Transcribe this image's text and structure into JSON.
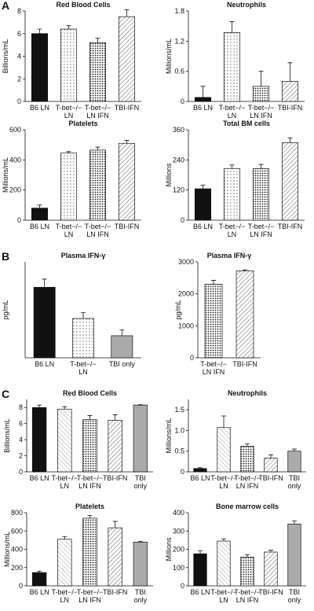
{
  "chart_data": [
    {
      "type": "bar",
      "panel": "A",
      "title": "Red Blood Cells",
      "ylabel": "Billions/mL",
      "categories": [
        "B6 LN",
        "T-bet−/−\nLN",
        "T-bet−/−\nLN IFN",
        "TBI-IFN"
      ],
      "values": [
        6.0,
        6.4,
        5.2,
        7.5
      ],
      "errors": [
        0.4,
        0.3,
        0.4,
        0.6
      ],
      "styles": [
        "black",
        "dots",
        "dense-dots",
        "hatch"
      ],
      "ylim": [
        0,
        8
      ],
      "yticks": [
        0,
        2,
        4,
        6,
        8
      ]
    },
    {
      "type": "bar",
      "title": "Neutrophils",
      "ylabel": "Millions/mL",
      "categories": [
        "B6 LN",
        "T-bet−/−\nLN",
        "T-bet−/−\nLN IFN",
        "TBI-IFN"
      ],
      "values": [
        0.08,
        1.37,
        0.3,
        0.4
      ],
      "errors": [
        0.22,
        0.22,
        0.3,
        0.37
      ],
      "styles": [
        "black",
        "dots",
        "dense-dots",
        "hatch"
      ],
      "ylim": [
        0,
        1.8
      ],
      "yticks": [
        0,
        0.6,
        1.2,
        1.8
      ]
    },
    {
      "type": "bar",
      "title": "Platelets",
      "ylabel": "Millions/mL",
      "categories": [
        "B6 LN",
        "T-bet−/−\nLN",
        "T-bet−/−\nLN IFN",
        "TBI-IFN"
      ],
      "values": [
        80,
        445,
        465,
        510
      ],
      "errors": [
        20,
        10,
        20,
        20
      ],
      "styles": [
        "black",
        "dots",
        "dense-dots",
        "hatch"
      ],
      "ylim": [
        0,
        600
      ],
      "yticks": [
        0,
        200,
        400,
        600
      ]
    },
    {
      "type": "bar",
      "title": "Total BM cells",
      "ylabel": "Millions",
      "categories": [
        "B6 LN",
        "T-bet−/−\nLN",
        "T-bet−/−\nLN IFN",
        "TBI-IFN"
      ],
      "values": [
        125,
        205,
        205,
        308
      ],
      "errors": [
        15,
        15,
        17,
        20
      ],
      "styles": [
        "black",
        "dots",
        "dense-dots",
        "hatch"
      ],
      "ylim": [
        0,
        360
      ],
      "yticks": [
        0,
        120,
        240,
        360
      ]
    },
    {
      "type": "bar",
      "panel": "B",
      "title": "Plasma IFN-γ",
      "ylabel": "pg/mL",
      "categories": [
        "B6 LN",
        "T-bet−/−\nLN",
        "TBI only"
      ],
      "values": [
        147,
        82,
        46
      ],
      "errors": [
        17,
        12,
        12
      ],
      "styles": [
        "black",
        "dots",
        "gray"
      ],
      "ylim": [
        0,
        200
      ]
    },
    {
      "type": "bar",
      "title": "Plasma IFN-γ",
      "ylabel": "pg/mL",
      "categories": [
        "T-bet−/−\nLN IFN",
        "TBI-IFN"
      ],
      "values": [
        2300,
        2720
      ],
      "errors": [
        120,
        30
      ],
      "styles": [
        "dense-dots",
        "hatch"
      ],
      "ylim": [
        0,
        3000
      ],
      "yticks": [
        0,
        1000,
        2000,
        3000
      ]
    },
    {
      "type": "bar",
      "panel": "C",
      "title": "Red Blood Cells",
      "ylabel": "Billions/mL",
      "categories": [
        "B6 LN",
        "T-bet−/−\nLN",
        "T-bet−/−\nLN IFN",
        "TBI-IFN",
        "TBI\nonly"
      ],
      "values": [
        8.0,
        7.8,
        6.5,
        6.4,
        8.3
      ],
      "errors": [
        0.3,
        0.3,
        0.5,
        0.7,
        0.05
      ],
      "styles": [
        "black",
        "hatch-light",
        "dense-dots",
        "hatch",
        "gray"
      ],
      "ylim": [
        0,
        9
      ],
      "yticks": [
        0,
        2,
        4,
        6,
        8
      ]
    },
    {
      "type": "bar",
      "title": "Neutrophils",
      "ylabel": "Millions/mL",
      "categories": [
        "B6 LN",
        "T-bet−/−\nLN",
        "T-bet−/−\nLN IFN",
        "TBI-IFN",
        "TBI\nonly"
      ],
      "values": [
        0.08,
        1.07,
        0.62,
        0.33,
        0.5
      ],
      "errors": [
        0.02,
        0.28,
        0.06,
        0.08,
        0.05
      ],
      "styles": [
        "black",
        "hatch-light",
        "dense-dots",
        "hatch",
        "gray"
      ],
      "ylim": [
        0,
        1.75
      ],
      "yticks": [
        0,
        0.5,
        {
          "value": 1,
          "label": "1.0"
        },
        1.5
      ]
    },
    {
      "type": "bar",
      "title": "Platelets",
      "ylabel": "Millions/mL",
      "categories": [
        "B6 LN",
        "T-bet−/−\nLN",
        "T-bet−/−\nLN IFN",
        "TBI-IFN",
        "TBI\nonly"
      ],
      "values": [
        145,
        510,
        740,
        635,
        478
      ],
      "errors": [
        15,
        30,
        30,
        70,
        10
      ],
      "styles": [
        "black",
        "hatch-light",
        "dense-dots",
        "hatch",
        "gray"
      ],
      "ylim": [
        0,
        800
      ],
      "yticks": [
        0,
        200,
        400,
        600,
        800
      ]
    },
    {
      "type": "bar",
      "title": "Bone marrow cells",
      "ylabel": "Millions",
      "categories": [
        "B6 LN",
        "T-bet−/−\nLN",
        "T-bet−/−\nLN IFN",
        "TBI-IFN",
        "TBI\nonly"
      ],
      "values": [
        175,
        245,
        157,
        185,
        338
      ],
      "errors": [
        18,
        12,
        13,
        10,
        17
      ],
      "styles": [
        "black",
        "hatch-light",
        "dense-dots",
        "hatch",
        "gray"
      ],
      "ylim": [
        0,
        400
      ],
      "yticks": [
        0,
        100,
        200,
        300,
        400
      ]
    }
  ]
}
